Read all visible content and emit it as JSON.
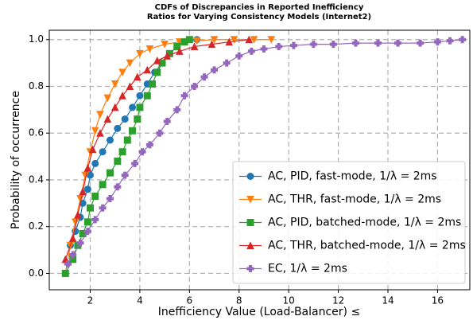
{
  "chart_data": {
    "type": "line",
    "title": [
      "CDFs of Discrepancies in Reported Inefficiency",
      "Ratios for Varying Consistency Models (Internet2)"
    ],
    "x_label": "Inefficiency Value (Load-Balancer) ≤",
    "y_label": "Probability of occurrence",
    "xlim": [
      0.35,
      17.3
    ],
    "ylim": [
      -0.07,
      1.04
    ],
    "xticks": [
      2,
      4,
      6,
      8,
      10,
      12,
      14,
      16
    ],
    "yticks": [
      {
        "value": 0,
        "label": "0.0"
      },
      {
        "value": 0.2,
        "label": "0.2"
      },
      {
        "value": 0.4,
        "label": "0.4"
      },
      {
        "value": 0.6,
        "label": "0.6"
      },
      {
        "value": 0.8,
        "label": "0.8"
      },
      {
        "value": 1,
        "label": "1.0"
      }
    ],
    "grid": true,
    "legend": "lower right",
    "series": [
      {
        "name": "AC, PID, fast-mode, 1/λ = 2ms",
        "color": "#1f77b4",
        "marker": "circle",
        "x": [
          1,
          1.2,
          1.4,
          1.6,
          1.7,
          1.9,
          2.0,
          2.2,
          2.5,
          2.8,
          3.1,
          3.4,
          3.7,
          4.0,
          4.3,
          4.6,
          4.9,
          5.2,
          5.5,
          5.8,
          6.3
        ],
        "values": [
          0,
          0.12,
          0.18,
          0.24,
          0.3,
          0.36,
          0.42,
          0.47,
          0.52,
          0.57,
          0.62,
          0.66,
          0.71,
          0.76,
          0.81,
          0.86,
          0.9,
          0.94,
          0.97,
          0.99,
          1.0
        ]
      },
      {
        "name": "AC, THR, fast-mode, 1/λ = 2ms",
        "color": "#ff7f0e",
        "marker": "triangle-down",
        "x": [
          1.0,
          1.2,
          1.4,
          1.6,
          1.8,
          2.0,
          2.2,
          2.4,
          2.7,
          3.0,
          3.3,
          3.6,
          4.0,
          4.4,
          5.0,
          5.6,
          6.3,
          7.0,
          7.8,
          8.6,
          9.3
        ],
        "values": [
          0,
          0.12,
          0.22,
          0.32,
          0.42,
          0.52,
          0.61,
          0.68,
          0.75,
          0.81,
          0.86,
          0.9,
          0.94,
          0.96,
          0.98,
          0.99,
          0.995,
          1.0,
          1.0,
          1.0,
          1.0
        ]
      },
      {
        "name": "AC, PID, batched-mode, 1/λ = 2ms",
        "color": "#2ca02c",
        "marker": "square",
        "x": [
          1,
          1.3,
          1.5,
          1.7,
          1.9,
          2.0,
          2.2,
          2.5,
          2.8,
          3.1,
          3.3,
          3.5,
          3.7,
          3.9,
          4.0,
          4.3,
          4.5,
          4.7,
          4.9,
          5.2,
          5.5,
          5.8,
          6.0
        ],
        "values": [
          0,
          0.06,
          0.12,
          0.17,
          0.22,
          0.28,
          0.33,
          0.38,
          0.43,
          0.48,
          0.52,
          0.57,
          0.61,
          0.66,
          0.71,
          0.76,
          0.81,
          0.86,
          0.9,
          0.94,
          0.97,
          0.99,
          1.0
        ]
      },
      {
        "name": "AC, THR, batched-mode, 1/λ = 2ms",
        "color": "#d62728",
        "marker": "triangle-up",
        "x": [
          1,
          1.3,
          1.5,
          1.7,
          1.9,
          2.1,
          2.4,
          2.7,
          3.0,
          3.3,
          3.6,
          3.9,
          4.3,
          4.7,
          5.1,
          5.6,
          6.2,
          6.9,
          7.6,
          8.4
        ],
        "values": [
          0.06,
          0.15,
          0.25,
          0.35,
          0.45,
          0.53,
          0.6,
          0.66,
          0.71,
          0.76,
          0.8,
          0.84,
          0.87,
          0.91,
          0.93,
          0.95,
          0.97,
          0.98,
          0.99,
          1.0
        ]
      },
      {
        "name": "EC, 1/λ = 2ms",
        "color": "#9467bd",
        "marker": "plus",
        "x": [
          1.1,
          1.3,
          1.6,
          1.9,
          2.2,
          2.5,
          2.8,
          3.1,
          3.4,
          3.8,
          4.1,
          4.4,
          4.8,
          5.1,
          5.5,
          5.8,
          6.2,
          6.6,
          7.0,
          7.5,
          8.0,
          8.5,
          9.0,
          9.6,
          10.2,
          11,
          11.8,
          12.7,
          13.6,
          14.4,
          15.3,
          16.0,
          16.5,
          17.0
        ],
        "values": [
          0.04,
          0.08,
          0.13,
          0.18,
          0.23,
          0.28,
          0.32,
          0.37,
          0.42,
          0.47,
          0.52,
          0.55,
          0.6,
          0.65,
          0.7,
          0.76,
          0.8,
          0.84,
          0.87,
          0.9,
          0.93,
          0.95,
          0.96,
          0.97,
          0.975,
          0.98,
          0.98,
          0.985,
          0.985,
          0.985,
          0.985,
          0.99,
          0.995,
          1.0
        ]
      }
    ]
  }
}
